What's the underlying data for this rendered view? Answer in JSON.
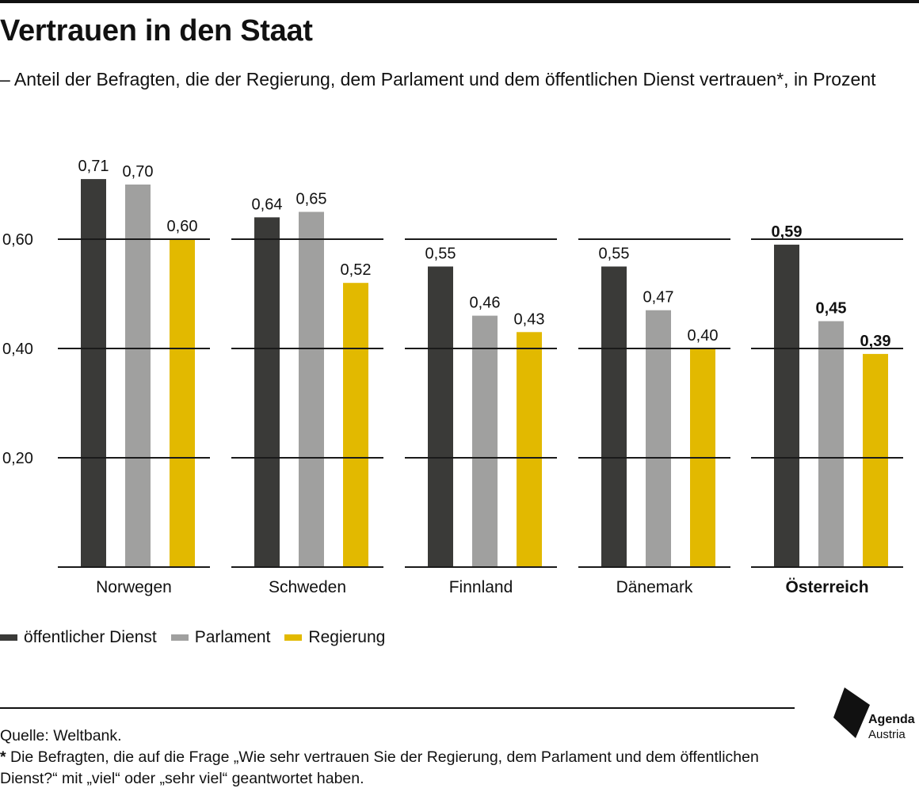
{
  "title": "Vertrauen in den Staat",
  "subtitle": "– Anteil der Befragten, die der Regierung, dem Parlament und dem öffentlichen Dienst vertrauen*, in Prozent",
  "colors": {
    "oeffentlicher_dienst": "#3a3a38",
    "parlament": "#a0a09f",
    "regierung": "#e2b900",
    "gridline": "#1a1a1a"
  },
  "chart_data": {
    "type": "bar",
    "categories": [
      "Norwegen",
      "Schweden",
      "Finnland",
      "Dänemark",
      "Österreich"
    ],
    "highlight_category": "Österreich",
    "series": [
      {
        "name": "öffentlicher Dienst",
        "color": "#3a3a38",
        "values": [
          0.71,
          0.64,
          0.55,
          0.55,
          0.59
        ],
        "labels": [
          "0,71",
          "0,64",
          "0,55",
          "0,55",
          "0,59"
        ]
      },
      {
        "name": "Parlament",
        "color": "#a0a09f",
        "values": [
          0.7,
          0.65,
          0.46,
          0.47,
          0.45
        ],
        "labels": [
          "0,70",
          "0,65",
          "0,46",
          "0,47",
          "0,45"
        ]
      },
      {
        "name": "Regierung",
        "color": "#e2b900",
        "values": [
          0.6,
          0.52,
          0.43,
          0.4,
          0.39
        ],
        "labels": [
          "0,60",
          "0,52",
          "0,43",
          "0,40",
          "0,39"
        ]
      }
    ],
    "yticks": [
      0.2,
      0.4,
      0.6
    ],
    "ytick_labels": [
      "0,20",
      "0,40",
      "0,60"
    ],
    "ylim": [
      0,
      0.8
    ],
    "grid": true,
    "legend_position": "bottom-left"
  },
  "legend": {
    "items": [
      {
        "label": "öffentlicher Dienst",
        "color": "#3a3a38"
      },
      {
        "label": "Parlament",
        "color": "#a0a09f"
      },
      {
        "label": "Regierung",
        "color": "#e2b900"
      }
    ]
  },
  "footer": {
    "source": "Quelle: Weltbank.",
    "note_star": "*",
    "note_text": " Die Befragten, die auf die Frage „Wie sehr vertrauen Sie der Regierung, dem Parlament und dem öffentlichen Dienst?“ mit „viel“ oder „sehr viel“ geantwortet haben."
  },
  "logo": {
    "line1": "Agenda",
    "line2": "Austria"
  }
}
